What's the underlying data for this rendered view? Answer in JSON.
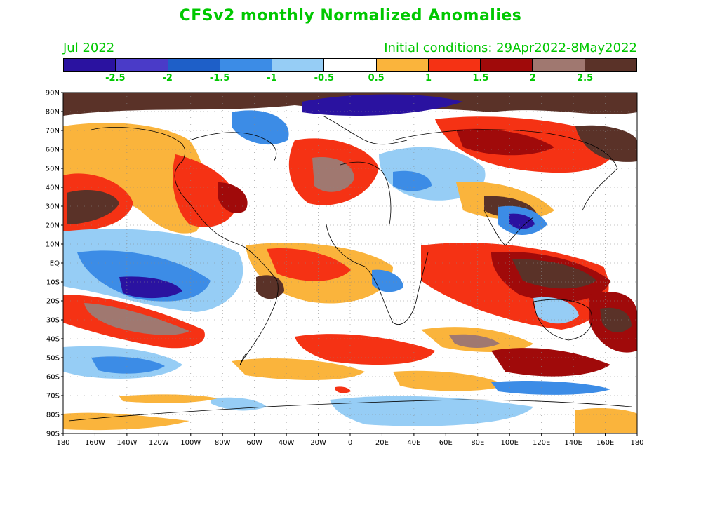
{
  "title": "CFSv2 monthly Normalized Anomalies",
  "subtitle_left": "Jul 2022",
  "subtitle_right": "Initial conditions: 29Apr2022-8May2022",
  "colorbar": {
    "colors": [
      "#2a12a0",
      "#4a3bc8",
      "#1e5fc8",
      "#3c8ce6",
      "#96cdf5",
      "#ffffff",
      "#fab43c",
      "#f53214",
      "#a00a0a",
      "#a07870",
      "#5a3228"
    ],
    "labels": [
      "-2.5",
      "-2",
      "-1.5",
      "-1",
      "-0.5",
      "0.5",
      "1",
      "1.5",
      "2",
      "2.5"
    ]
  },
  "map": {
    "lat_labels": [
      "90N",
      "80N",
      "70N",
      "60N",
      "50N",
      "40N",
      "30N",
      "20N",
      "10N",
      "EQ",
      "10S",
      "20S",
      "30S",
      "40S",
      "50S",
      "60S",
      "70S",
      "80S",
      "90S"
    ],
    "lon_labels": [
      "180",
      "160W",
      "140W",
      "120W",
      "100W",
      "80W",
      "60W",
      "40W",
      "20W",
      "0",
      "20E",
      "40E",
      "60E",
      "80E",
      "100E",
      "120E",
      "140E",
      "160E",
      "180"
    ]
  }
}
